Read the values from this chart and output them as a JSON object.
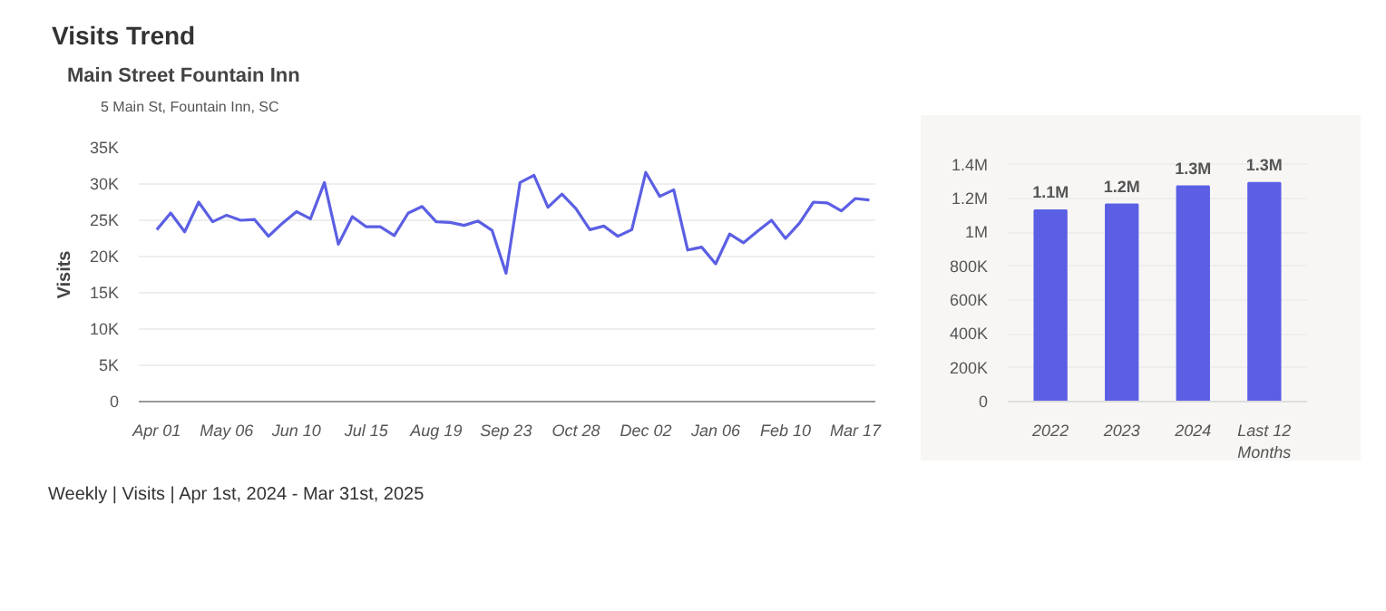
{
  "chart_data": [
    {
      "type": "line",
      "title": "Visits Trend",
      "subtitle": "5 Main St, Fountain Inn, SC",
      "ylabel": "Visits",
      "x": [
        "2024-04-01",
        "2024-04-08",
        "2024-04-15",
        "2024-04-22",
        "2024-04-29",
        "2024-05-06",
        "2024-05-13",
        "2024-05-20",
        "2024-05-27",
        "2024-06-03",
        "2024-06-10",
        "2024-06-17",
        "2024-06-24",
        "2024-07-01",
        "2024-07-08",
        "2024-07-15",
        "2024-07-22",
        "2024-07-29",
        "2024-08-05",
        "2024-08-12",
        "2024-08-19",
        "2024-08-26",
        "2024-09-02",
        "2024-09-09",
        "2024-09-16",
        "2024-09-23",
        "2024-09-30",
        "2024-10-07",
        "2024-10-14",
        "2024-10-21",
        "2024-10-28",
        "2024-11-04",
        "2024-11-11",
        "2024-11-18",
        "2024-11-25",
        "2024-12-02",
        "2024-12-09",
        "2024-12-16",
        "2024-12-23",
        "2024-12-30",
        "2025-01-06",
        "2025-01-13",
        "2025-01-20",
        "2025-01-27",
        "2025-02-03",
        "2025-02-10",
        "2025-02-17",
        "2025-02-24",
        "2025-03-03",
        "2025-03-10",
        "2025-03-17",
        "2025-03-24"
      ],
      "series": [
        {
          "name": "Main Street Fountain Inn",
          "color": "#5b5fe3",
          "values": [
            23700,
            26000,
            23400,
            27500,
            24800,
            25700,
            25000,
            25100,
            22800,
            24600,
            26200,
            25200,
            30200,
            21700,
            25500,
            24100,
            24100,
            22900,
            26000,
            26900,
            24800,
            24700,
            24300,
            24900,
            23600,
            17700,
            30200,
            31200,
            26800,
            28600,
            26600,
            23700,
            24200,
            22800,
            23700,
            31600,
            28300,
            29200,
            20900,
            21300,
            19000,
            23100,
            21900,
            23500,
            25000,
            22500,
            24600,
            27500,
            27400,
            26300,
            28000,
            27800
          ]
        }
      ],
      "xlim": [
        "2024-03-23",
        "2025-03-27"
      ],
      "xticks": [
        {
          "value": "2024-04-01",
          "label": "Apr 01"
        },
        {
          "value": "2024-05-06",
          "label": "May 06"
        },
        {
          "value": "2024-06-10",
          "label": "Jun 10"
        },
        {
          "value": "2024-07-15",
          "label": "Jul 15"
        },
        {
          "value": "2024-08-19",
          "label": "Aug 19"
        },
        {
          "value": "2024-09-23",
          "label": "Sep 23"
        },
        {
          "value": "2024-10-28",
          "label": "Oct 28"
        },
        {
          "value": "2024-12-02",
          "label": "Dec 02"
        },
        {
          "value": "2025-01-06",
          "label": "Jan 06"
        },
        {
          "value": "2025-02-10",
          "label": "Feb 10"
        },
        {
          "value": "2025-03-17",
          "label": "Mar 17"
        }
      ],
      "ylim": [
        0,
        35000
      ],
      "yticks": [
        0,
        {
          "value": 5000,
          "label": "5K"
        },
        {
          "value": 10000,
          "label": "10K"
        },
        {
          "value": 15000,
          "label": "15K"
        },
        {
          "value": 20000,
          "label": "20K"
        },
        {
          "value": 25000,
          "label": "25K"
        },
        {
          "value": 30000,
          "label": "30K"
        },
        {
          "value": 35000,
          "label": "35K"
        }
      ],
      "grid": "y",
      "legend": "top left",
      "line_style": "solid",
      "annotations": [
        "Weekly | Visits | Apr 1st, 2024 - Mar 31st, 2025"
      ]
    },
    {
      "type": "bar",
      "categories": [
        "2022",
        "2023",
        "2024",
        "Last 12\nMonths"
      ],
      "values": [
        1130000,
        1165000,
        1272000,
        1293000
      ],
      "color": "#5b5fe3",
      "value_labels": [
        "1.1M",
        "1.2M",
        "1.3M",
        "1.3M"
      ],
      "ylim": [
        0,
        1500000
      ],
      "yticks": [
        0,
        {
          "value": 200000,
          "label": "200K"
        },
        {
          "value": 400000,
          "label": "400K"
        },
        {
          "value": 600000,
          "label": "600K"
        },
        {
          "value": 800000,
          "label": "800K"
        },
        {
          "value": 1000000,
          "label": "1M"
        },
        {
          "value": 1200000,
          "label": "1.2M"
        },
        {
          "value": 1400000,
          "label": "1.4M"
        }
      ],
      "grid": "y"
    }
  ]
}
